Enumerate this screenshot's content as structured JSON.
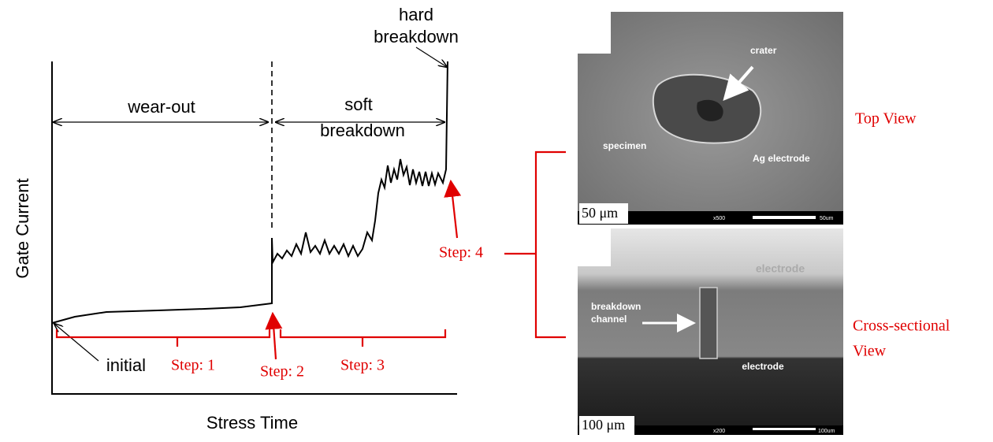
{
  "plot": {
    "y_axis_label": "Gate Current",
    "x_axis_label": "Stress Time",
    "regions": {
      "wear_out": "wear-out",
      "soft_breakdown": [
        "soft",
        "breakdown"
      ],
      "hard_breakdown": [
        "hard",
        "breakdown"
      ],
      "initial": "initial"
    },
    "steps": [
      "Step: 1",
      "Step: 2",
      "Step: 3",
      "Step: 4"
    ]
  },
  "images": {
    "top": {
      "labels": [
        "crater",
        "specimen",
        "Ag electrode"
      ],
      "scale": "50 μm",
      "bar_info": [
        "x500",
        "50um"
      ],
      "caption": "Top View"
    },
    "cross": {
      "labels": [
        "electrode",
        "breakdown",
        "channel",
        "electrode"
      ],
      "scale": "100 μm",
      "bar_info": [
        "x200",
        "100um"
      ],
      "caption": [
        "Cross-sectional",
        "View"
      ]
    }
  }
}
